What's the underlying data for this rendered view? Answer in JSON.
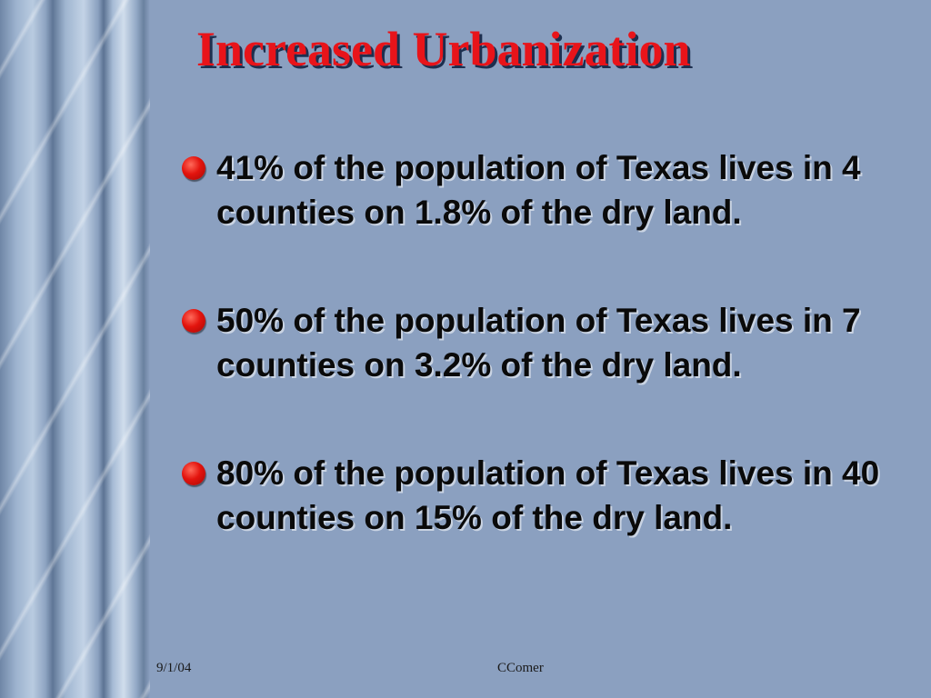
{
  "slide": {
    "title": "Increased Urbanization",
    "bullets": [
      "41% of the population of Texas lives in 4 counties on 1.8% of the dry land.",
      "50% of the population of Texas lives in 7 counties on 3.2% of the dry land.",
      "80% of the population of Texas lives in 40 counties on 15% of the dry land."
    ],
    "footer": {
      "date": "9/1/04",
      "author": "CComer"
    }
  },
  "colors": {
    "background": "#8ba0c0",
    "title": "#e8141a",
    "bullet": "#e3140e",
    "text": "#0a0a0a"
  }
}
